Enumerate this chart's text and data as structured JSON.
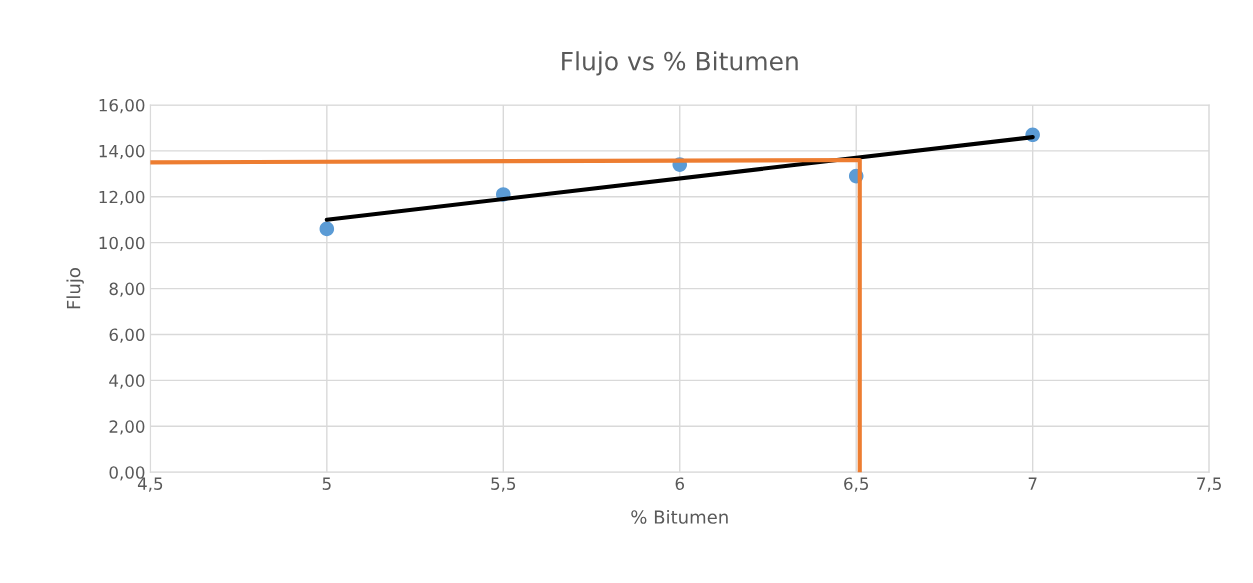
{
  "chart_data": {
    "type": "scatter",
    "title": "Flujo vs % Bitumen",
    "xlabel": "% Bitumen",
    "ylabel": "Flujo",
    "xlim": [
      4.5,
      7.5
    ],
    "xticks": [
      {
        "value": 4.5,
        "label": "4,5"
      },
      {
        "value": 5,
        "label": "5"
      },
      {
        "value": 5.5,
        "label": "5,5"
      },
      {
        "value": 6,
        "label": "6"
      },
      {
        "value": 6.5,
        "label": "6,5"
      },
      {
        "value": 7,
        "label": "7"
      },
      {
        "value": 7.5,
        "label": "7,5"
      }
    ],
    "ylim": [
      0,
      16
    ],
    "yticks": [
      {
        "value": 0,
        "label": "0,00"
      },
      {
        "value": 2,
        "label": "2,00"
      },
      {
        "value": 4,
        "label": "4,00"
      },
      {
        "value": 6,
        "label": "6,00"
      },
      {
        "value": 8,
        "label": "8,00"
      },
      {
        "value": 10,
        "label": "10,00"
      },
      {
        "value": 12,
        "label": "12,00"
      },
      {
        "value": 14,
        "label": "14,00"
      },
      {
        "value": 16,
        "label": "16,00"
      }
    ],
    "grid": true,
    "series": [
      {
        "marker": "circle",
        "color": "#5b9bd5",
        "x": [
          5,
          5.5,
          6,
          6.5,
          7
        ],
        "values": [
          10.6,
          12.1,
          13.4,
          12.9,
          14.7
        ]
      },
      {
        "type": "line",
        "color": "#000000",
        "x": [
          5,
          7
        ],
        "values": [
          11.0,
          14.6
        ]
      },
      {
        "type": "line",
        "color": "#ed7d31",
        "x": [
          4.5,
          6.51,
          6.51
        ],
        "values": [
          13.5,
          13.6,
          0
        ]
      }
    ]
  }
}
